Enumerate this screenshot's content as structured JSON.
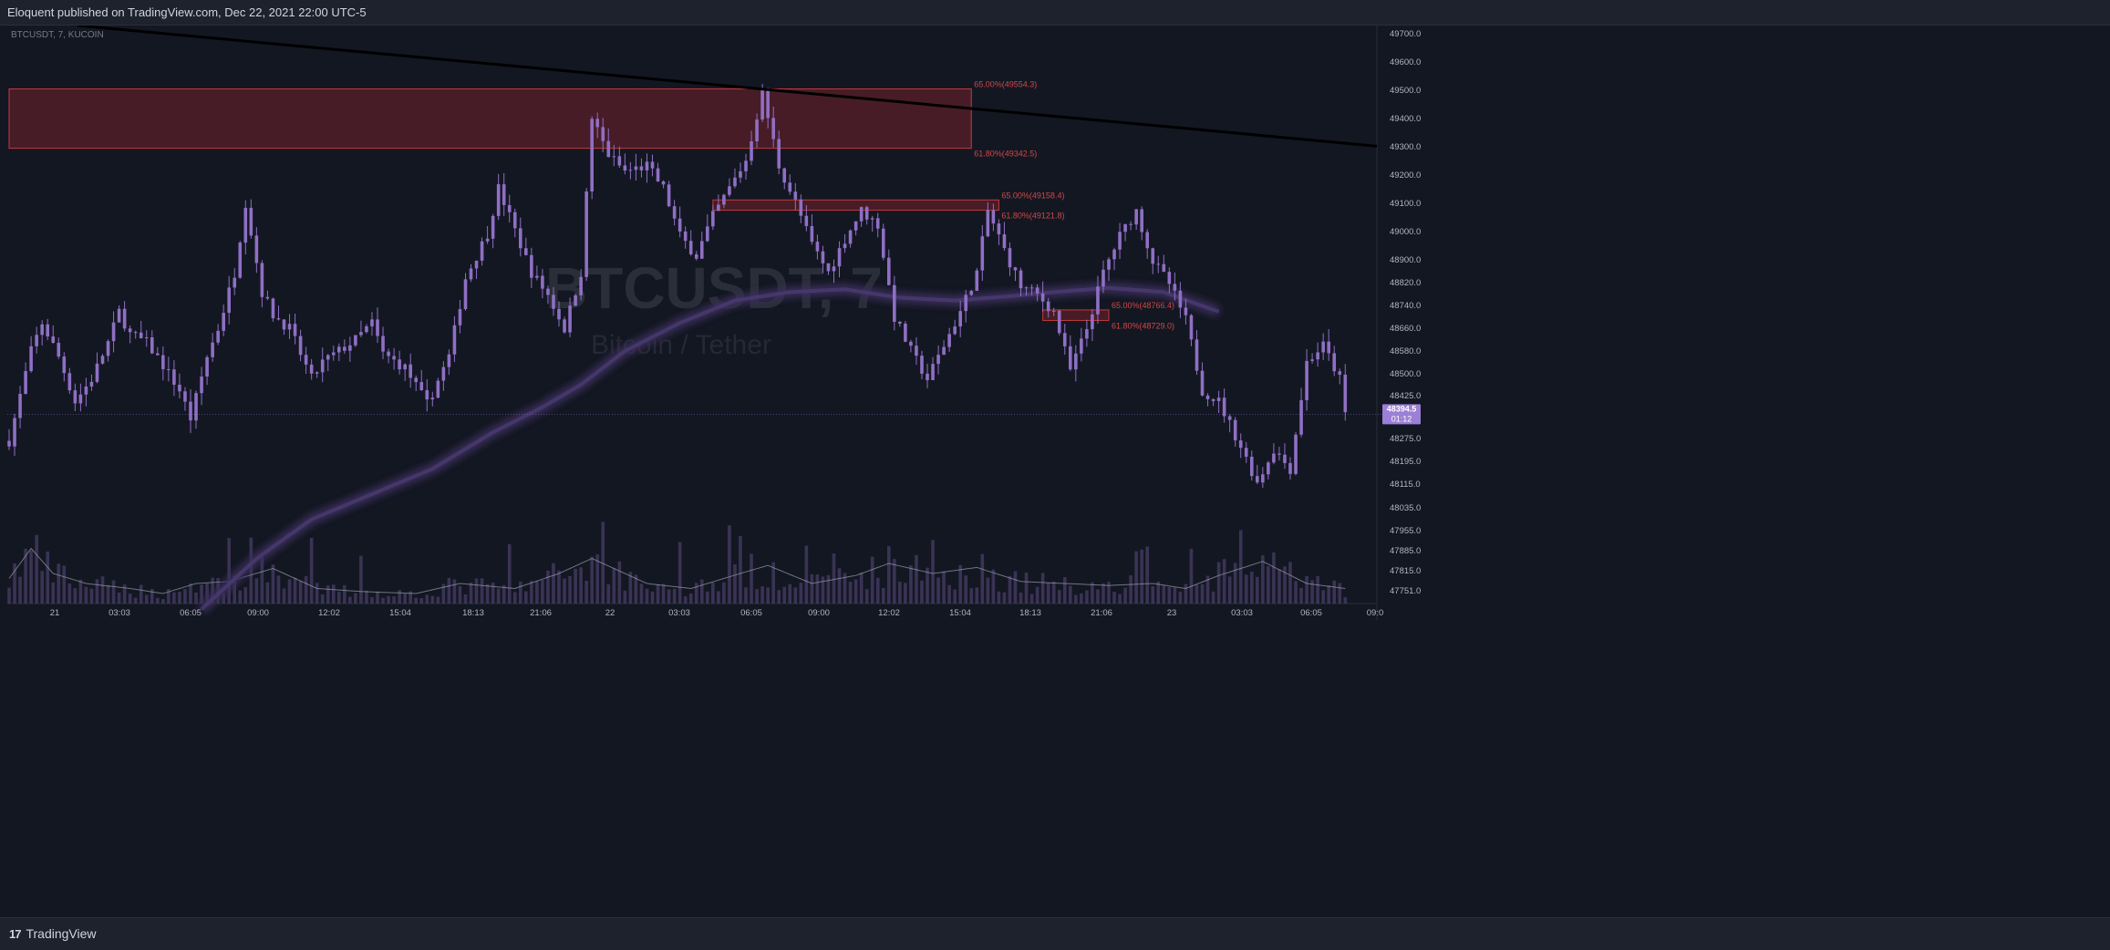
{
  "header": {
    "published_text": "Eloquent published on TradingView.com, Dec 22, 2021 22:00 UTC-5"
  },
  "footer": {
    "brand": "TradingView",
    "logo_mark": "17"
  },
  "colors": {
    "background": "#131722",
    "candle": "#8f6fc4",
    "zone_fill": "#5c1f29",
    "zone_border": "#c23a3a",
    "fib_label": "#d04848",
    "trendline": "#000000",
    "ma_glow": "#3a2f5a",
    "price_badge": "#9c7fd6"
  },
  "chart_data": {
    "type": "candlestick",
    "symbol_label": "BTCUSDT, 7, KUCOIN",
    "watermark_symbol": "BTCUSDT, 7",
    "watermark_desc": "Bitcoin / Tether",
    "ylim": [
      47720,
      49780
    ],
    "y_ticks": [
      "49700.0",
      "49600.0",
      "49500.0",
      "49400.0",
      "49300.0",
      "49200.0",
      "49100.0",
      "49000.0",
      "48900.0",
      "48820.0",
      "48740.0",
      "48660.0",
      "48580.0",
      "48500.0",
      "48425.0",
      "48275.0",
      "48195.0",
      "48115.0",
      "48035.0",
      "47955.0",
      "47885.0",
      "47815.0",
      "47751.0"
    ],
    "x_ticks": [
      "21",
      "03:03",
      "06:05",
      "09:00",
      "12:02",
      "15:04",
      "18:13",
      "21:06",
      "22",
      "03:03",
      "06:05",
      "09:00",
      "12:02",
      "15:04",
      "18:13",
      "21:06",
      "23",
      "03:03",
      "06:05",
      "09:0"
    ],
    "last_price": {
      "value": "48394.5",
      "countdown": "01:12"
    },
    "close_path": [
      [
        0,
        48300
      ],
      [
        4,
        48620
      ],
      [
        6,
        48720
      ],
      [
        9,
        48600
      ],
      [
        12,
        48440
      ],
      [
        15,
        48520
      ],
      [
        18,
        48650
      ],
      [
        20,
        48760
      ],
      [
        22,
        48680
      ],
      [
        25,
        48650
      ],
      [
        28,
        48570
      ],
      [
        31,
        48480
      ],
      [
        33,
        48380
      ],
      [
        36,
        48600
      ],
      [
        38,
        48700
      ],
      [
        41,
        48900
      ],
      [
        43,
        49150
      ],
      [
        46,
        48830
      ],
      [
        48,
        48750
      ],
      [
        51,
        48700
      ],
      [
        55,
        48520
      ],
      [
        57,
        48580
      ],
      [
        60,
        48620
      ],
      [
        63,
        48660
      ],
      [
        66,
        48720
      ],
      [
        68,
        48610
      ],
      [
        72,
        48560
      ],
      [
        76,
        48430
      ],
      [
        80,
        48600
      ],
      [
        83,
        48880
      ],
      [
        87,
        49040
      ],
      [
        89,
        49200
      ],
      [
        92,
        49050
      ],
      [
        95,
        48900
      ],
      [
        98,
        48820
      ],
      [
        101,
        48700
      ],
      [
        104,
        48900
      ],
      [
        106,
        49450
      ],
      [
        109,
        49320
      ],
      [
        112,
        49260
      ],
      [
        116,
        49280
      ],
      [
        119,
        49200
      ],
      [
        122,
        49030
      ],
      [
        125,
        48960
      ],
      [
        128,
        49100
      ],
      [
        131,
        49200
      ],
      [
        134,
        49300
      ],
      [
        137,
        49540
      ],
      [
        140,
        49280
      ],
      [
        143,
        49150
      ],
      [
        146,
        49000
      ],
      [
        149,
        48900
      ],
      [
        152,
        49020
      ],
      [
        155,
        49120
      ],
      [
        158,
        49070
      ],
      [
        161,
        48740
      ],
      [
        164,
        48620
      ],
      [
        167,
        48520
      ],
      [
        170,
        48640
      ],
      [
        173,
        48760
      ],
      [
        176,
        48900
      ],
      [
        178,
        49120
      ],
      [
        181,
        48980
      ],
      [
        184,
        48850
      ],
      [
        187,
        48820
      ],
      [
        190,
        48760
      ],
      [
        193,
        48550
      ],
      [
        196,
        48700
      ],
      [
        199,
        48900
      ],
      [
        202,
        49030
      ],
      [
        205,
        49120
      ],
      [
        208,
        48940
      ],
      [
        211,
        48860
      ],
      [
        214,
        48730
      ],
      [
        217,
        48480
      ],
      [
        220,
        48440
      ],
      [
        224,
        48280
      ],
      [
        227,
        48150
      ],
      [
        230,
        48270
      ],
      [
        233,
        48200
      ],
      [
        236,
        48580
      ],
      [
        239,
        48640
      ],
      [
        242,
        48520
      ],
      [
        243,
        48394
      ]
    ],
    "ma_path": [
      [
        35,
        47700
      ],
      [
        45,
        47880
      ],
      [
        55,
        48020
      ],
      [
        66,
        48110
      ],
      [
        77,
        48200
      ],
      [
        88,
        48330
      ],
      [
        97,
        48420
      ],
      [
        104,
        48500
      ],
      [
        112,
        48620
      ],
      [
        122,
        48720
      ],
      [
        132,
        48800
      ],
      [
        142,
        48830
      ],
      [
        152,
        48840
      ],
      [
        162,
        48810
      ],
      [
        172,
        48800
      ],
      [
        182,
        48815
      ],
      [
        190,
        48830
      ],
      [
        200,
        48845
      ],
      [
        210,
        48830
      ],
      [
        220,
        48760
      ]
    ],
    "volume_path": [
      [
        0,
        0.25
      ],
      [
        4,
        0.55
      ],
      [
        8,
        0.3
      ],
      [
        14,
        0.2
      ],
      [
        22,
        0.15
      ],
      [
        28,
        0.1
      ],
      [
        34,
        0.2
      ],
      [
        40,
        0.22
      ],
      [
        48,
        0.35
      ],
      [
        56,
        0.15
      ],
      [
        64,
        0.12
      ],
      [
        74,
        0.1
      ],
      [
        82,
        0.2
      ],
      [
        92,
        0.15
      ],
      [
        100,
        0.3
      ],
      [
        106,
        0.45
      ],
      [
        116,
        0.2
      ],
      [
        124,
        0.15
      ],
      [
        133,
        0.3
      ],
      [
        138,
        0.38
      ],
      [
        146,
        0.2
      ],
      [
        154,
        0.28
      ],
      [
        160,
        0.4
      ],
      [
        168,
        0.3
      ],
      [
        176,
        0.36
      ],
      [
        184,
        0.22
      ],
      [
        192,
        0.2
      ],
      [
        200,
        0.18
      ],
      [
        208,
        0.2
      ],
      [
        214,
        0.15
      ],
      [
        220,
        0.28
      ],
      [
        228,
        0.42
      ],
      [
        236,
        0.2
      ],
      [
        243,
        0.15
      ]
    ],
    "trendline": {
      "from": [
        0,
        49780
      ],
      "to": [
        280,
        49350
      ]
    },
    "fib_zones": [
      {
        "x_from": 0,
        "x_to": 175,
        "top": 49554.3,
        "bottom": 49342.5,
        "label_top": "65.00%(49554.3)",
        "label_bottom": "61.80%(49342.5)"
      },
      {
        "x_from": 128,
        "x_to": 180,
        "top": 49158.4,
        "bottom": 49121.8,
        "label_top": "65.00%(49158.4)",
        "label_bottom": "61.80%(49121.8)"
      },
      {
        "x_from": 188,
        "x_to": 200,
        "top": 48766.4,
        "bottom": 48729.0,
        "label_top": "65.00%(48766.4)",
        "label_bottom": "61.80%(48729.0)"
      }
    ]
  }
}
